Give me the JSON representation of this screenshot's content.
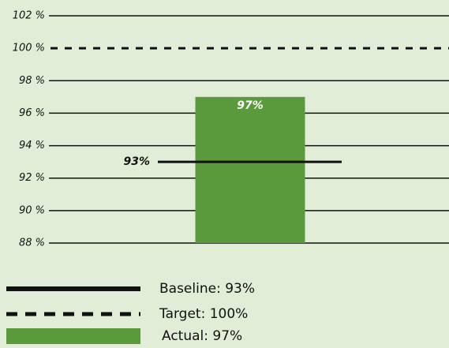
{
  "chart_data": {
    "type": "bar",
    "categories": [
      null
    ],
    "values": [
      97
    ],
    "value_labels": [
      "97%"
    ],
    "color": "#5b9a3c",
    "ylim": [
      88,
      102
    ],
    "yticks": [
      {
        "value": 88,
        "label": "88 %"
      },
      {
        "value": 90,
        "label": "90 %"
      },
      {
        "value": 92,
        "label": "92 %"
      },
      {
        "value": 94,
        "label": "94 %"
      },
      {
        "value": 96,
        "label": "96 %"
      },
      {
        "value": 98,
        "label": "98 %"
      },
      {
        "value": 100,
        "label": "100 %"
      },
      {
        "value": 102,
        "label": "102 %"
      }
    ],
    "grid": true,
    "baseline": {
      "value": 93,
      "label": "93%"
    },
    "target": {
      "value": 100
    },
    "legend": [
      "Baseline: 93%",
      "Target: 100%",
      "Actual: 97%"
    ]
  }
}
